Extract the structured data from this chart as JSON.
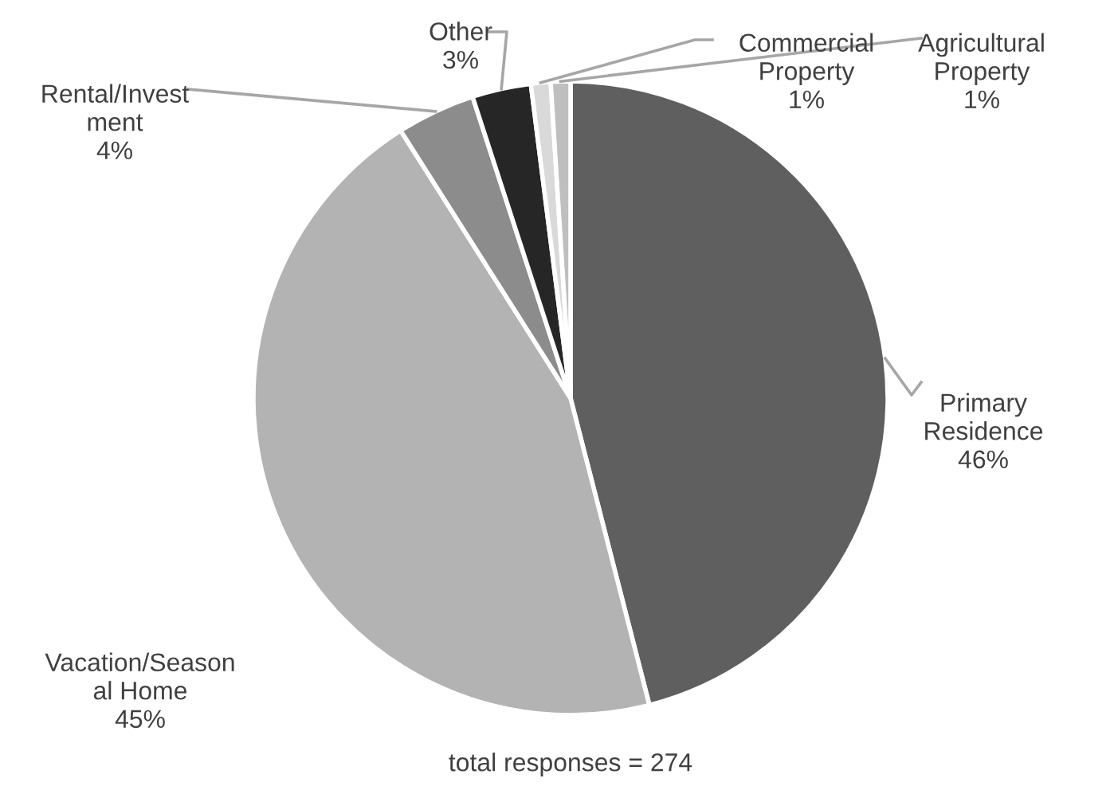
{
  "chart_data": {
    "type": "pie",
    "categories": [
      "Primary\nResidence",
      "Vacation/Season\nal Home",
      "Rental/Invest\nment",
      "Other",
      "Commercial\nProperty",
      "Agricultural\nProperty"
    ],
    "values": [
      46,
      45,
      4,
      3,
      1,
      1
    ],
    "colors": [
      "#5f5f5f",
      "#b3b3b3",
      "#8c8c8c",
      "#262626",
      "#d9d9d9",
      "#bfbfbf"
    ],
    "value_labels": [
      "46%",
      "45%",
      "4%",
      "3%",
      "1%",
      "1%"
    ],
    "annotations": [
      "total responses = 274"
    ]
  }
}
